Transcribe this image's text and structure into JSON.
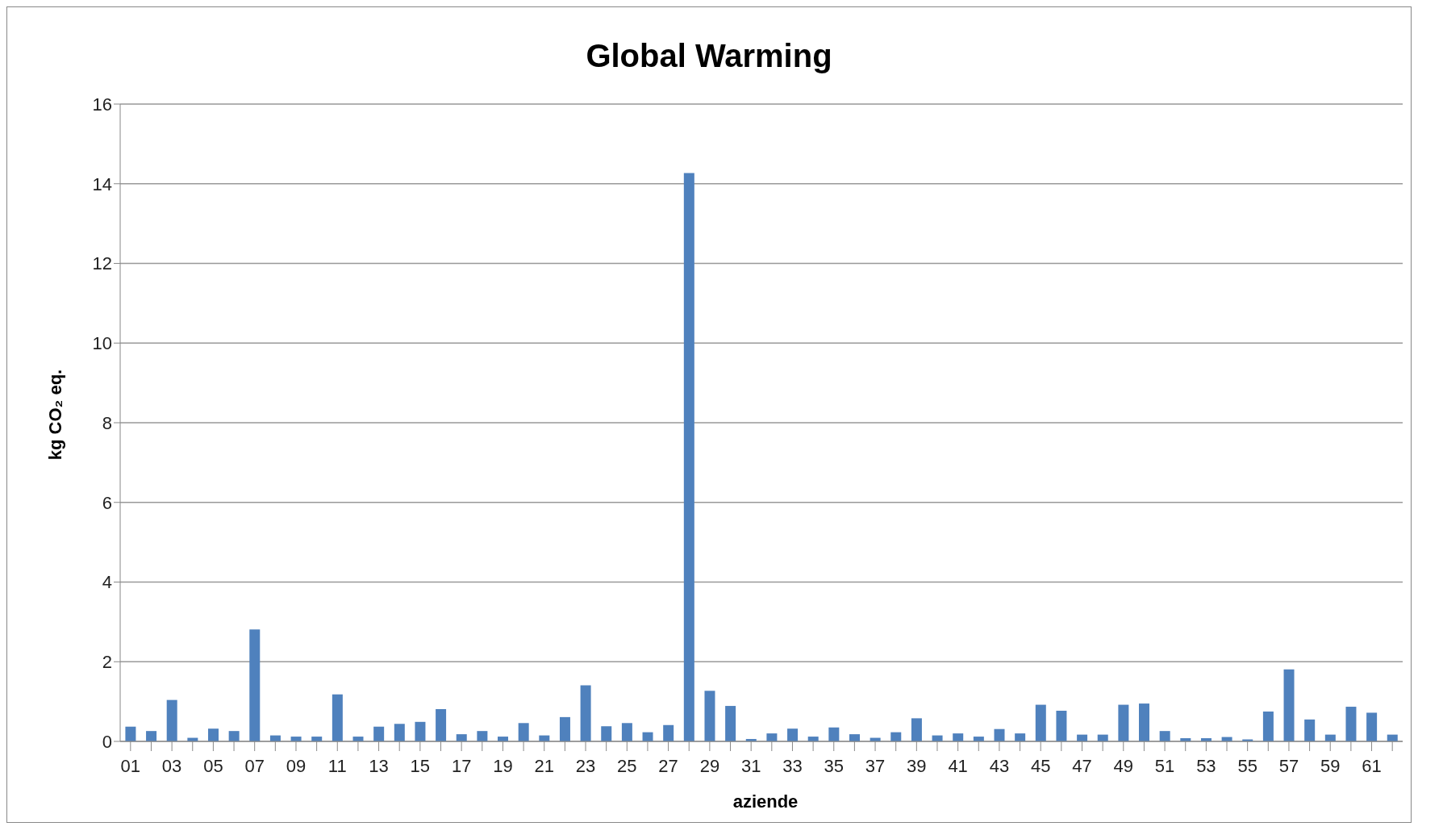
{
  "chart_data": {
    "type": "bar",
    "title": "Global Warming",
    "xlabel": "aziende",
    "ylabel": "kg CO₂ eq.",
    "categories": [
      "01",
      null,
      "03",
      null,
      "05",
      null,
      "07",
      null,
      "09",
      null,
      "11",
      null,
      "13",
      null,
      "15",
      null,
      "17",
      null,
      "19",
      null,
      "21",
      null,
      "23",
      null,
      "25",
      null,
      "27",
      null,
      "29",
      null,
      "31",
      null,
      "33",
      null,
      "35",
      null,
      "37",
      null,
      "39",
      null,
      "41",
      null,
      "43",
      null,
      "45",
      null,
      "47",
      null,
      "49",
      null,
      "51",
      null,
      "53",
      null,
      "55",
      null,
      "57",
      null,
      "59",
      null,
      "61",
      null
    ],
    "values": [
      0.37,
      0.26,
      1.04,
      0.09,
      0.32,
      0.26,
      2.81,
      0.15,
      0.12,
      0.12,
      1.18,
      0.12,
      0.37,
      0.44,
      0.49,
      0.81,
      0.18,
      0.26,
      0.12,
      0.46,
      0.15,
      0.61,
      1.41,
      0.38,
      0.46,
      0.23,
      0.41,
      14.27,
      1.27,
      0.89,
      0.06,
      0.2,
      0.32,
      0.12,
      0.35,
      0.18,
      0.09,
      0.23,
      0.58,
      0.15,
      0.2,
      0.12,
      0.31,
      0.2,
      0.92,
      0.77,
      0.17,
      0.17,
      0.92,
      0.95,
      0.26,
      0.08,
      0.08,
      0.11,
      0.05,
      0.75,
      1.81,
      0.55,
      0.17,
      0.87,
      0.72,
      0.17
    ],
    "color": "#4f81bd",
    "ylim": [
      0,
      16
    ],
    "yticks": [
      0,
      2,
      4,
      6,
      8,
      10,
      12,
      14,
      16
    ],
    "grid": "y",
    "legend": false
  }
}
